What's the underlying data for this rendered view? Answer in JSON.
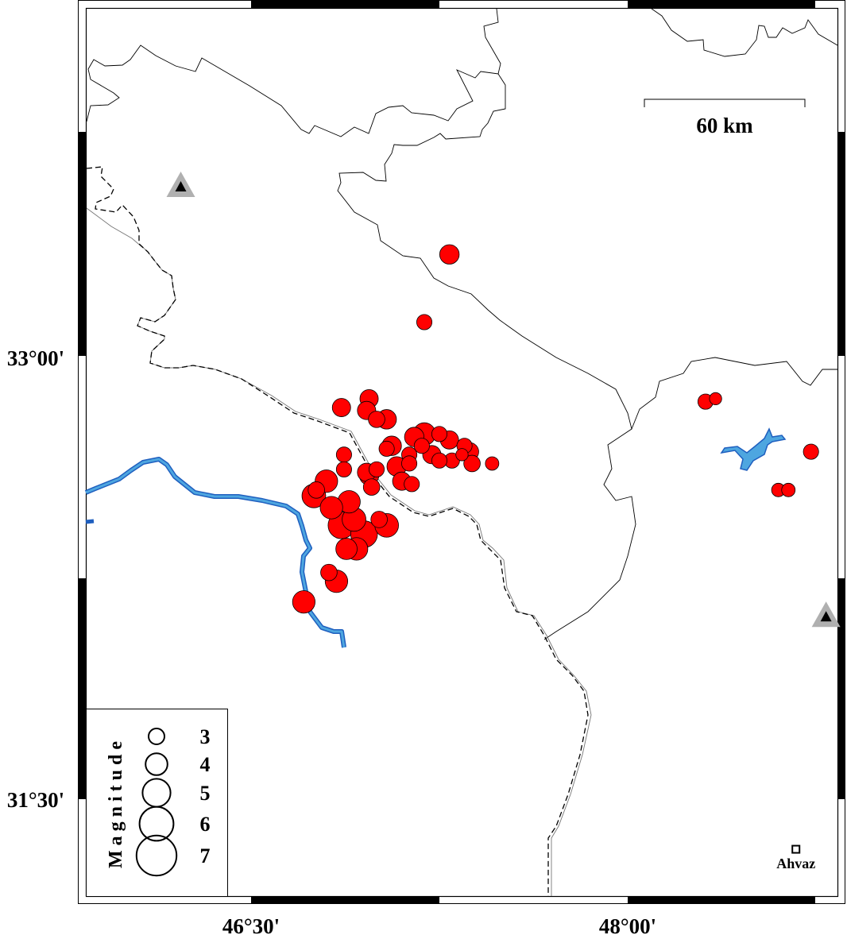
{
  "map": {
    "lon_range": [
      45.9,
      48.87
    ],
    "lat_range": [
      31.17,
      33.97
    ],
    "colors": {
      "event": "#ff0000",
      "water": "#4ea6e0",
      "water_edge": "#1f5fbf",
      "station": "#b0b0b0"
    },
    "lon_ticks": [
      {
        "value": 46.5,
        "label": "46°30'"
      },
      {
        "value": 48.0,
        "label": "48°00'"
      }
    ],
    "lat_ticks": [
      {
        "value": 33.0,
        "label": "33°00'"
      },
      {
        "value": 31.5,
        "label": "31°30'"
      }
    ]
  },
  "scale_bar": {
    "label": "60 km"
  },
  "legend": {
    "title": "Magnitude",
    "entries": [
      {
        "mag": 3,
        "label": "3"
      },
      {
        "mag": 4,
        "label": "4"
      },
      {
        "mag": 5,
        "label": "5"
      },
      {
        "mag": 6,
        "label": "6"
      },
      {
        "mag": 7,
        "label": "7"
      }
    ]
  },
  "city": {
    "name": "Ahvaz",
    "lon": 48.67,
    "lat": 31.33
  },
  "stations": [
    {
      "lon": 46.22,
      "lat": 33.58
    },
    {
      "lon": 48.79,
      "lat": 32.12
    }
  ],
  "events": [
    [
      47.29,
      33.35,
      3.6
    ],
    [
      47.19,
      33.12,
      2.9
    ],
    [
      46.97,
      32.86,
      3.4
    ],
    [
      46.86,
      32.83,
      3.4
    ],
    [
      46.96,
      32.82,
      3.4
    ],
    [
      47.04,
      32.79,
      3.6
    ],
    [
      47.0,
      32.79,
      3.1
    ],
    [
      47.19,
      32.74,
      4.1
    ],
    [
      47.15,
      32.73,
      3.6
    ],
    [
      47.25,
      32.74,
      2.9
    ],
    [
      47.29,
      32.72,
      3.4
    ],
    [
      47.06,
      32.7,
      3.6
    ],
    [
      47.04,
      32.69,
      2.9
    ],
    [
      47.18,
      32.7,
      2.9
    ],
    [
      47.35,
      32.7,
      2.9
    ],
    [
      47.37,
      32.68,
      3.4
    ],
    [
      47.22,
      32.67,
      3.4
    ],
    [
      47.13,
      32.67,
      2.9
    ],
    [
      46.87,
      32.67,
      2.9
    ],
    [
      46.87,
      32.62,
      2.9
    ],
    [
      47.3,
      32.65,
      2.9
    ],
    [
      47.25,
      32.65,
      2.9
    ],
    [
      47.34,
      32.67,
      2.4
    ],
    [
      47.38,
      32.64,
      3.1
    ],
    [
      47.46,
      32.64,
      2.6
    ],
    [
      47.08,
      32.63,
      3.6
    ],
    [
      47.13,
      32.64,
      2.9
    ],
    [
      47.0,
      32.62,
      2.9
    ],
    [
      46.97,
      32.6,
      3.6
    ],
    [
      46.96,
      32.61,
      3.4
    ],
    [
      47.14,
      32.57,
      2.9
    ],
    [
      47.1,
      32.58,
      3.4
    ],
    [
      46.98,
      32.56,
      3.1
    ],
    [
      46.8,
      32.58,
      4.1
    ],
    [
      46.75,
      32.53,
      4.3
    ],
    [
      46.76,
      32.55,
      3.1
    ],
    [
      46.89,
      32.51,
      4.1
    ],
    [
      46.82,
      32.49,
      4.1
    ],
    [
      46.86,
      32.43,
      4.8
    ],
    [
      46.95,
      32.4,
      4.8
    ],
    [
      47.01,
      32.45,
      3.1
    ],
    [
      47.04,
      32.43,
      4.3
    ],
    [
      46.91,
      32.45,
      4.3
    ],
    [
      46.88,
      32.35,
      3.9
    ],
    [
      46.92,
      32.35,
      4.1
    ],
    [
      46.81,
      32.27,
      3.1
    ],
    [
      46.84,
      32.24,
      4.1
    ],
    [
      46.71,
      32.17,
      4.1
    ],
    [
      48.31,
      32.85,
      2.9
    ],
    [
      48.35,
      32.86,
      2.4
    ],
    [
      48.6,
      32.55,
      2.6
    ],
    [
      48.64,
      32.55,
      2.6
    ],
    [
      48.73,
      32.68,
      2.9
    ]
  ]
}
